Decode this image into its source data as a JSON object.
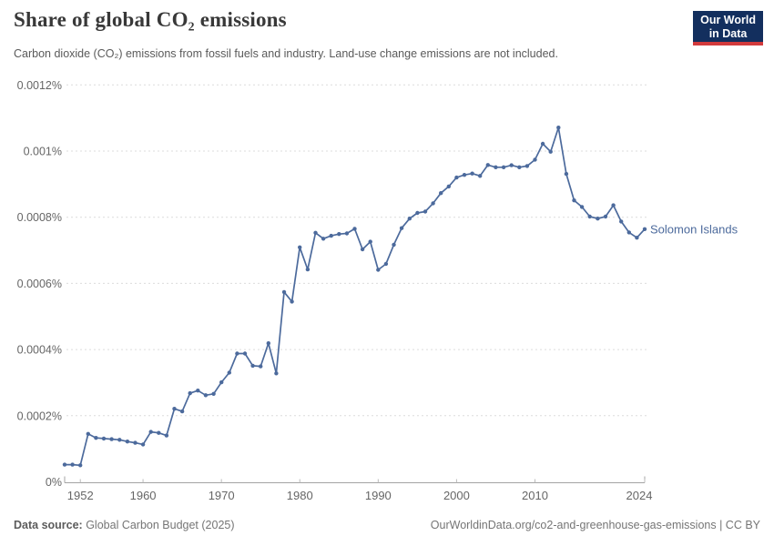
{
  "header": {
    "title": "Share of global CO₂ emissions",
    "subtitle": "Carbon dioxide (CO₂) emissions from fossil fuels and industry. Land-use change emissions are not included.",
    "logo": {
      "line1": "Our World",
      "line2": "in Data",
      "bg_color": "#132f5e",
      "accent_color": "#d23a3c"
    }
  },
  "footer": {
    "source_label": "Data source:",
    "source_value": " Global Carbon Budget (2025)",
    "right_text": "OurWorldinData.org/co2-and-greenhouse-gas-emissions | CC BY"
  },
  "chart_data": {
    "type": "line",
    "title": "Share of global CO₂ emissions",
    "unit": "%",
    "grid": "horizontal-dashed",
    "legend_position": "end-of-line-label",
    "xlim": [
      1950,
      2024
    ],
    "ylim": [
      0,
      0.0012
    ],
    "x_ticks": [
      1952,
      1960,
      1970,
      1980,
      1990,
      2000,
      2010,
      2024
    ],
    "y_ticks": [
      {
        "value": 0,
        "label": "0%"
      },
      {
        "value": 0.0002,
        "label": "0.0002%"
      },
      {
        "value": 0.0004,
        "label": "0.0004%"
      },
      {
        "value": 0.0006,
        "label": "0.0006%"
      },
      {
        "value": 0.0008,
        "label": "0.0008%"
      },
      {
        "value": 0.001,
        "label": "0.001%"
      },
      {
        "value": 0.0012,
        "label": "0.0012%"
      }
    ],
    "series": [
      {
        "name": "Solomon Islands",
        "color": "#4C6A9C",
        "x": [
          1950,
          1951,
          1952,
          1953,
          1954,
          1955,
          1956,
          1957,
          1958,
          1959,
          1960,
          1961,
          1962,
          1963,
          1964,
          1965,
          1966,
          1967,
          1968,
          1969,
          1970,
          1971,
          1972,
          1973,
          1974,
          1975,
          1976,
          1977,
          1978,
          1979,
          1980,
          1981,
          1982,
          1983,
          1984,
          1985,
          1986,
          1987,
          1988,
          1989,
          1990,
          1991,
          1992,
          1993,
          1994,
          1995,
          1996,
          1997,
          1998,
          1999,
          2000,
          2001,
          2002,
          2003,
          2004,
          2005,
          2006,
          2007,
          2008,
          2009,
          2010,
          2011,
          2012,
          2013,
          2014,
          2015,
          2016,
          2017,
          2018,
          2019,
          2020,
          2021,
          2022,
          2023,
          2024
        ],
        "values": [
          5.2e-05,
          5.2e-05,
          5e-05,
          0.000145,
          0.000133,
          0.000131,
          0.000129,
          0.000127,
          0.000122,
          0.000118,
          0.000113,
          0.000151,
          0.000148,
          0.00014,
          0.000221,
          0.000213,
          0.000268,
          0.000276,
          0.000262,
          0.000266,
          0.000301,
          0.00033,
          0.000388,
          0.000388,
          0.000351,
          0.000349,
          0.000419,
          0.000328,
          0.000574,
          0.000545,
          0.000709,
          0.000642,
          0.000753,
          0.000735,
          0.000744,
          0.000749,
          0.000751,
          0.000765,
          0.000703,
          0.000726,
          0.000641,
          0.000659,
          0.000717,
          0.000767,
          0.000796,
          0.000813,
          0.000817,
          0.000842,
          0.000873,
          0.000893,
          0.00092,
          0.000928,
          0.000932,
          0.000925,
          0.000958,
          0.000951,
          0.000951,
          0.000957,
          0.000951,
          0.000955,
          0.000974,
          0.001022,
          0.000998,
          0.001071,
          0.000931,
          0.000851,
          0.000831,
          0.000802,
          0.000796,
          0.000802,
          0.000836,
          0.000787,
          0.000754,
          0.000738,
          0.000764
        ]
      }
    ]
  }
}
